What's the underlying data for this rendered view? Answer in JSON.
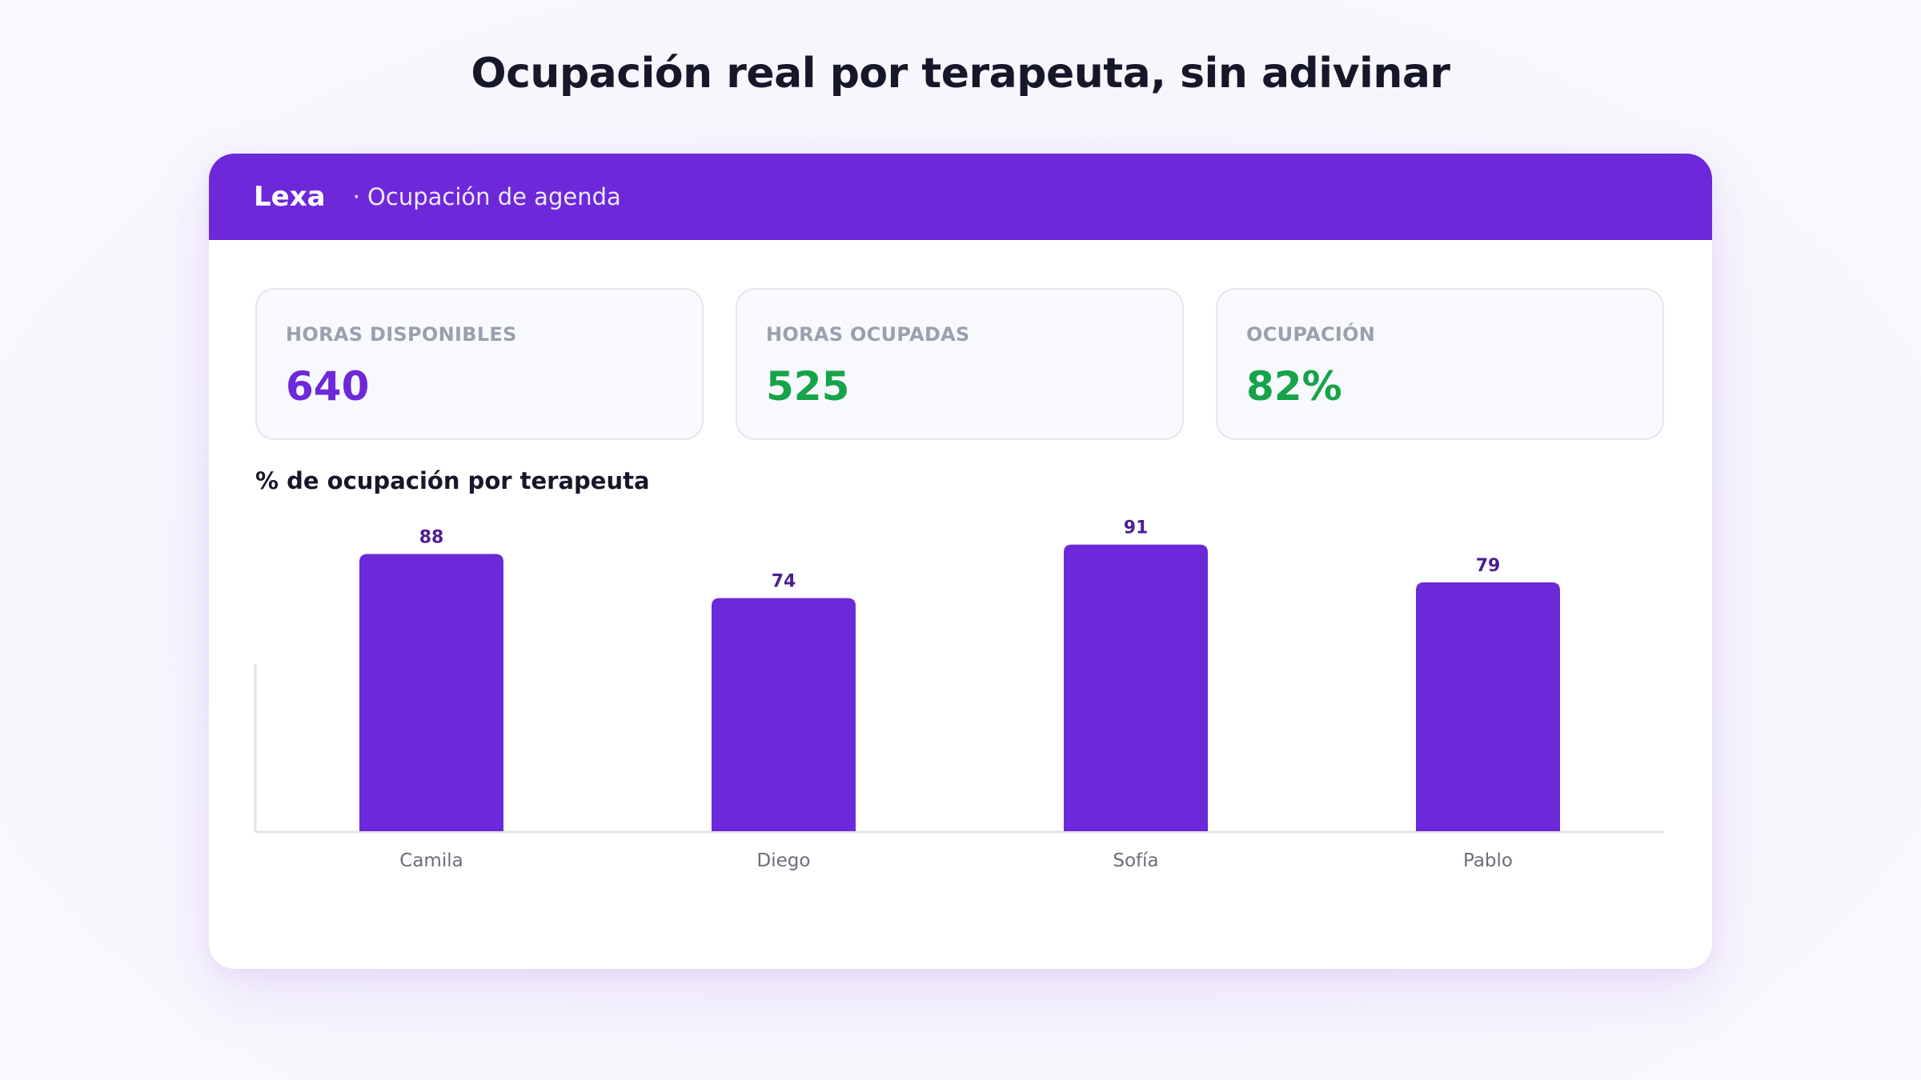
{
  "page": {
    "title": "Ocupación real por terapeuta, sin adivinar"
  },
  "header": {
    "brand": "Lexa",
    "subtitle": "· Ocupación de agenda",
    "background_color": "#6d28d9"
  },
  "kpis": [
    {
      "label": "HORAS DISPONIBLES",
      "value": "640",
      "color": "#6d28d9"
    },
    {
      "label": "HORAS OCUPADAS",
      "value": "525",
      "color": "#16a34a"
    },
    {
      "label": "OCUPACIÓN",
      "value": "82%",
      "color": "#16a34a"
    }
  ],
  "chart_data": {
    "type": "bar",
    "title": "% de ocupación por terapeuta",
    "categories": [
      "Camila",
      "Diego",
      "Sofía",
      "Pablo"
    ],
    "values": [
      88,
      74,
      91,
      79
    ],
    "ylim": [
      0,
      96
    ],
    "grid": false,
    "xlabel": "",
    "ylabel": "",
    "bar_color": "#6d28d9",
    "value_label_color": "#4c1d95"
  }
}
